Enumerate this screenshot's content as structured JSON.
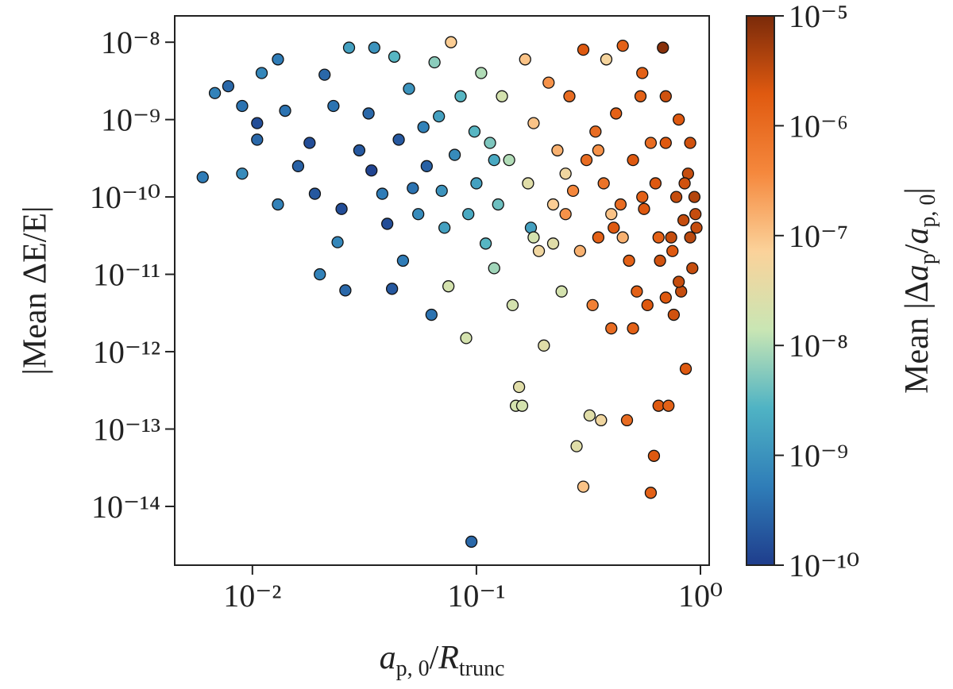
{
  "chart_data": {
    "type": "scatter",
    "xlabel": [
      {
        "text": "a",
        "italic": true
      },
      {
        "text": "p, 0",
        "sub": true
      },
      {
        "text": "/"
      },
      {
        "text": "R",
        "italic": true
      },
      {
        "text": "trunc",
        "sub": true
      }
    ],
    "ylabel": "|Mean ΔE/E|",
    "xscale": "log",
    "yscale": "log",
    "xlim": [
      0.0045,
      1.094
    ],
    "ylim": [
      1.74e-15,
      2.19e-08
    ],
    "xticks": [
      {
        "value": 0.01,
        "label": "10⁻²"
      },
      {
        "value": 0.1,
        "label": "10⁻¹"
      },
      {
        "value": 1,
        "label": "10⁰"
      }
    ],
    "yticks": [
      {
        "value": 1e-08,
        "label": "10⁻⁸"
      },
      {
        "value": 1e-09,
        "label": "10⁻⁹"
      },
      {
        "value": 1e-10,
        "label": "10⁻¹⁰"
      },
      {
        "value": 1e-11,
        "label": "10⁻¹¹"
      },
      {
        "value": 1e-12,
        "label": "10⁻¹²"
      },
      {
        "value": 1e-13,
        "label": "10⁻¹³"
      },
      {
        "value": 1e-14,
        "label": "10⁻¹⁴"
      }
    ],
    "marker_edge_color": "#111111",
    "colorbar": {
      "label": [
        {
          "text": "Mean |Δ"
        },
        {
          "text": "a",
          "italic": true
        },
        {
          "text": "p",
          "sub": true
        },
        {
          "text": "/"
        },
        {
          "text": "a",
          "italic": true
        },
        {
          "text": "p, 0",
          "sub": true
        },
        {
          "text": "|"
        }
      ],
      "scale": "log",
      "clim": [
        1e-10,
        1e-05
      ],
      "ticks": [
        {
          "value": 1e-10,
          "label": "10⁻¹⁰"
        },
        {
          "value": 1e-09,
          "label": "10⁻⁹"
        },
        {
          "value": 1e-08,
          "label": "10⁻⁸"
        },
        {
          "value": 1e-07,
          "label": "10⁻⁷"
        },
        {
          "value": 1e-06,
          "label": "10⁻⁶"
        },
        {
          "value": 1e-05,
          "label": "10⁻⁵"
        }
      ],
      "colormap": [
        "#1f3d8c",
        "#2f7db8",
        "#4fb3c4",
        "#c9e6b4",
        "#fbd29a",
        "#f5883d",
        "#e05a10",
        "#7a2a0a"
      ]
    },
    "series": [
      {
        "x": [
          0.006,
          0.0068,
          0.0078,
          0.009,
          0.009,
          0.0105,
          0.0105,
          0.011,
          0.013,
          0.013,
          0.014,
          0.016,
          0.018,
          0.019,
          0.02,
          0.021,
          0.023,
          0.024,
          0.025,
          0.026,
          0.027,
          0.03,
          0.033,
          0.034,
          0.035,
          0.038,
          0.04,
          0.042,
          0.043,
          0.045,
          0.047,
          0.05,
          0.052,
          0.055,
          0.058,
          0.06,
          0.063,
          0.065,
          0.068,
          0.07,
          0.072,
          0.075,
          0.077,
          0.08,
          0.085,
          0.09,
          0.092,
          0.095,
          0.098,
          0.1,
          0.105,
          0.11,
          0.115,
          0.12,
          0.125,
          0.13,
          0.14,
          0.145,
          0.15,
          0.155,
          0.16,
          0.165,
          0.17,
          0.175,
          0.18,
          0.19,
          0.2,
          0.21,
          0.22,
          0.23,
          0.24,
          0.25,
          0.26,
          0.27,
          0.28,
          0.29,
          0.3,
          0.3,
          0.31,
          0.32,
          0.33,
          0.34,
          0.35,
          0.36,
          0.37,
          0.38,
          0.4,
          0.41,
          0.42,
          0.44,
          0.45,
          0.47,
          0.48,
          0.5,
          0.52,
          0.54,
          0.56,
          0.58,
          0.6,
          0.62,
          0.63,
          0.65,
          0.66,
          0.68,
          0.7,
          0.72,
          0.74,
          0.76,
          0.78,
          0.8,
          0.82,
          0.84,
          0.86,
          0.88,
          0.9,
          0.92,
          0.94,
          0.96,
          0.55,
          0.45,
          0.25,
          0.18,
          0.12,
          0.35,
          0.65,
          0.75,
          0.85,
          0.95,
          0.7,
          0.5,
          0.4,
          0.22,
          0.6,
          0.9,
          0.8,
          0.55,
          0.7
        ],
        "y": [
          1.8e-10,
          2.2e-09,
          2.7e-09,
          2e-10,
          1.5e-09,
          9e-10,
          5.5e-10,
          4e-09,
          6e-09,
          8e-11,
          1.3e-09,
          2.5e-10,
          5e-10,
          1.1e-10,
          1e-11,
          3.8e-09,
          1.5e-09,
          2.6e-11,
          7e-11,
          6.2e-12,
          8.5e-09,
          4e-10,
          1.2e-09,
          2.2e-10,
          8.5e-09,
          1.1e-10,
          4.5e-11,
          6.5e-12,
          6.5e-09,
          5.5e-10,
          1.5e-11,
          2.5e-09,
          1.3e-10,
          6e-11,
          8e-10,
          2.5e-10,
          3e-12,
          5.5e-09,
          1.1e-09,
          1.2e-10,
          4e-11,
          7e-12,
          1e-08,
          3.5e-10,
          2e-09,
          1.5e-12,
          6e-11,
          3.5e-15,
          7e-10,
          1.5e-10,
          4e-09,
          2.5e-11,
          5e-10,
          1.2e-11,
          8e-11,
          2e-09,
          3e-10,
          4e-12,
          2e-13,
          3.5e-13,
          2e-13,
          6e-09,
          1.5e-10,
          4e-11,
          9e-10,
          2e-11,
          1.2e-12,
          3e-09,
          8e-11,
          4e-10,
          6e-12,
          6e-11,
          2e-09,
          1.2e-10,
          6e-14,
          2e-11,
          1.8e-14,
          8e-09,
          3e-10,
          1.5e-13,
          4e-12,
          7e-10,
          3e-11,
          1.3e-13,
          1.5e-10,
          6e-09,
          2e-12,
          4e-11,
          1.2e-09,
          8e-11,
          9e-09,
          1.3e-13,
          1.5e-11,
          3e-10,
          6e-12,
          2e-09,
          7e-11,
          4e-12,
          1.5e-14,
          4.5e-14,
          1.5e-10,
          2e-13,
          1.5e-11,
          8.5e-09,
          5e-10,
          2e-13,
          3e-11,
          3e-12,
          1e-10,
          1e-09,
          6e-12,
          5e-11,
          6e-13,
          2e-10,
          3e-11,
          1.2e-11,
          1e-10,
          4e-11,
          1e-10,
          3e-11,
          2e-10,
          3e-11,
          3e-10,
          4e-10,
          3e-11,
          2e-11,
          1.5e-10,
          6e-11,
          5e-12,
          2e-12,
          6e-11,
          2.5e-11,
          5e-10,
          5e-10,
          8e-12,
          4e-09,
          2e-09
        ],
        "color_values": [
          5e-10,
          6e-10,
          3e-10,
          8e-10,
          4e-10,
          1.5e-10,
          3e-10,
          7e-10,
          5e-10,
          6e-10,
          4e-10,
          2.5e-10,
          1.5e-10,
          2e-10,
          6e-10,
          3e-10,
          4e-10,
          7e-10,
          1.5e-10,
          3e-10,
          1.5e-09,
          2e-10,
          3e-10,
          1.2e-10,
          1e-09,
          5e-10,
          1.5e-10,
          2e-10,
          3e-09,
          2e-10,
          5e-10,
          1e-09,
          4e-10,
          8e-10,
          6e-10,
          2.5e-10,
          4e-10,
          6e-09,
          1.5e-09,
          1e-09,
          1.5e-09,
          2e-08,
          8e-08,
          8e-10,
          3e-09,
          2e-08,
          2e-09,
          3e-10,
          3e-09,
          1.5e-09,
          1e-08,
          3e-09,
          5e-09,
          8e-09,
          4e-09,
          2e-08,
          1e-08,
          2e-08,
          2e-08,
          3e-08,
          2e-08,
          1e-07,
          3e-08,
          1.5e-09,
          1e-07,
          5e-08,
          3e-08,
          3e-07,
          8e-08,
          1.5e-07,
          2e-08,
          3e-07,
          1e-06,
          4e-07,
          3e-08,
          1.5e-07,
          1e-07,
          2e-06,
          1e-06,
          3e-08,
          5e-07,
          1e-06,
          1.5e-06,
          5e-08,
          8e-07,
          6e-08,
          1e-06,
          2e-06,
          1.5e-06,
          1e-06,
          1.5e-06,
          1e-06,
          1.5e-06,
          2e-06,
          1.5e-06,
          1.5e-06,
          2e-06,
          2e-06,
          1.5e-06,
          2e-06,
          2e-06,
          2e-06,
          2.5e-06,
          8e-06,
          2e-06,
          1.5e-06,
          3e-06,
          2.5e-06,
          3e-06,
          2e-06,
          3e-06,
          3e-06,
          2e-06,
          3e-06,
          3.5e-06,
          3e-06,
          4e-06,
          3e-06,
          1.5e-06,
          1.5e-07,
          5e-08,
          2e-08,
          2e-09,
          3e-07,
          1.5e-06,
          2e-06,
          2.5e-06,
          3e-06,
          2e-06,
          1.5e-06,
          1e-07,
          3e-08,
          1e-06,
          2.5e-06,
          3e-06,
          1.5e-06,
          2.5e-06
        ]
      }
    ]
  }
}
